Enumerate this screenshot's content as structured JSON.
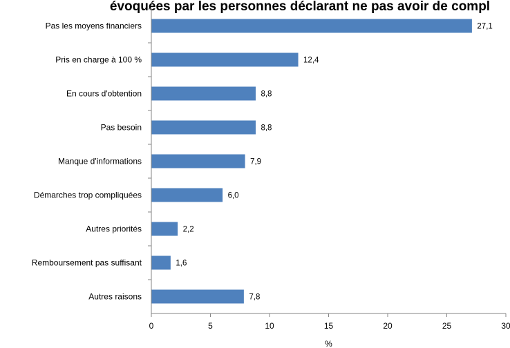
{
  "chart_data": {
    "type": "bar",
    "orientation": "horizontal",
    "title": "évoquées par les personnes déclarant ne pas avoir de compl",
    "categories": [
      "Pas les moyens financiers",
      "Pris en charge à 100 %",
      "En cours d'obtention",
      "Pas besoin",
      "Manque d'informations",
      "Démarches trop compliquées",
      "Autres priorités",
      "Remboursement pas suffisant",
      "Autres raisons"
    ],
    "values": [
      27.1,
      12.4,
      8.8,
      8.8,
      7.9,
      6.0,
      2.2,
      1.6,
      7.8
    ],
    "value_labels": [
      "27,1",
      "12,4",
      "8,8",
      "8,8",
      "7,9",
      "6,0",
      "2,2",
      "1,6",
      "7,8"
    ],
    "xlabel": "%",
    "ylabel": "",
    "xlim": [
      0,
      30
    ],
    "xticks": [
      0,
      5,
      10,
      15,
      20,
      25,
      30
    ],
    "grid": false,
    "legend": "none",
    "bar_color": "#4F81BD"
  }
}
